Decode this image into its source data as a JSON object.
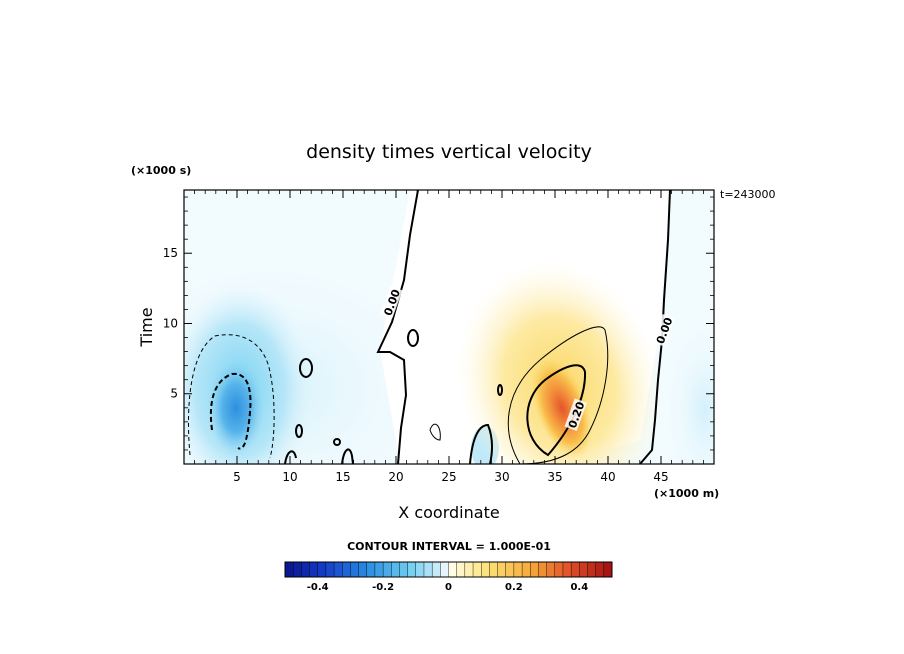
{
  "chart_data": {
    "type": "heatmap",
    "title": "density times vertical velocity",
    "xlabel": "X coordinate",
    "ylabel": "Time",
    "x_unit": "(×1000 m)",
    "y_unit": "(×1000 s)",
    "time_stamp": "t=243000",
    "xlim": [
      0,
      50
    ],
    "ylim": [
      0,
      19.5
    ],
    "x_ticks": [
      5,
      10,
      15,
      20,
      25,
      30,
      35,
      40,
      45
    ],
    "y_ticks": [
      5,
      10,
      15
    ],
    "contour_interval_text": "CONTOUR INTERVAL = 1.000E-01",
    "contour_labels": [
      {
        "text": "0.00",
        "x": 19.6,
        "y": 11.5
      },
      {
        "text": "0.00",
        "x": 45.3,
        "y": 9.5
      },
      {
        "text": "0.20",
        "x": 37.0,
        "y": 3.5
      }
    ],
    "features": [
      {
        "kind": "negative",
        "x": 5,
        "y": 4.0,
        "min": -0.32
      },
      {
        "kind": "negative",
        "x": 2.5,
        "y": 6.5,
        "value": -0.1
      },
      {
        "kind": "positive",
        "x": 35.5,
        "y": 3.5,
        "max": 0.36
      },
      {
        "kind": "positive",
        "x": 37,
        "y": 6.5,
        "value": 0.12
      }
    ],
    "colorbar": {
      "range": [
        -0.5,
        0.5
      ],
      "ticks": [
        "-0.4",
        "-0.2",
        "0",
        "0.2",
        "0.4"
      ],
      "tick_values": [
        -0.4,
        -0.2,
        0,
        0.2,
        0.4
      ],
      "n_bins": 40
    }
  }
}
